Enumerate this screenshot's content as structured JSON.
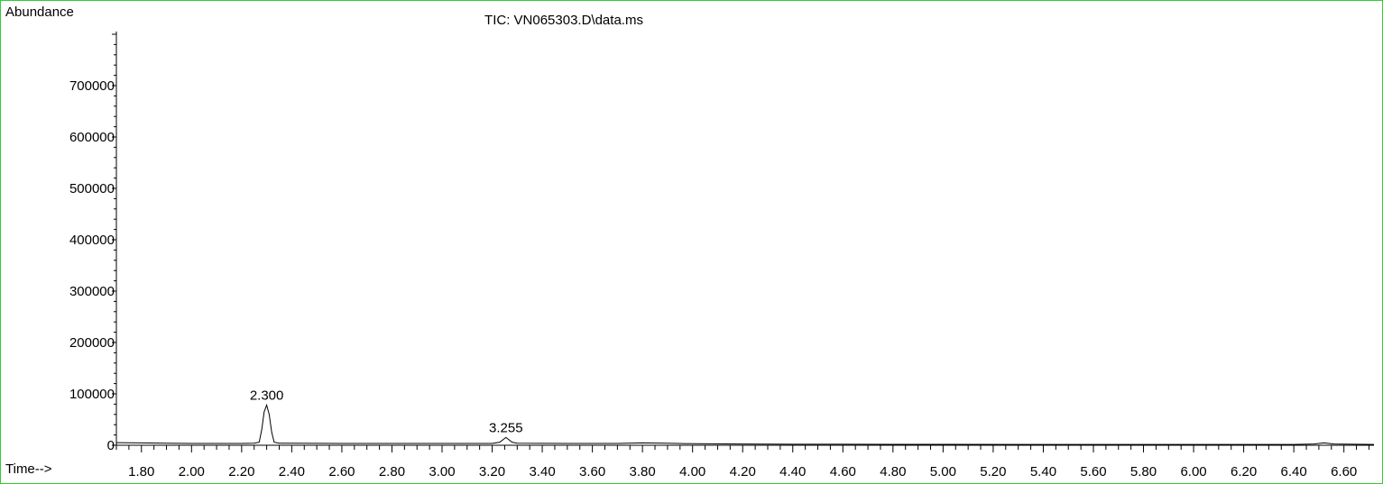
{
  "chart_data": {
    "type": "line",
    "title": "TIC: VN065303.D\\data.ms",
    "ylabel": "Abundance",
    "xlabel": "Time-->",
    "xlim": [
      1.7,
      6.72
    ],
    "ylim": [
      0,
      800000
    ],
    "x_ticks": [
      "1.80",
      "2.00",
      "2.20",
      "2.40",
      "2.60",
      "2.80",
      "3.00",
      "3.20",
      "3.40",
      "3.60",
      "3.80",
      "4.00",
      "4.20",
      "4.40",
      "4.60",
      "4.80",
      "5.00",
      "5.20",
      "5.40",
      "5.60",
      "5.80",
      "6.00",
      "6.20",
      "6.40",
      "6.60"
    ],
    "y_ticks": [
      "0",
      "100000",
      "200000",
      "300000",
      "400000",
      "500000",
      "600000",
      "700000"
    ],
    "series": [
      {
        "x": [
          1.7,
          1.8,
          1.9,
          2.0,
          2.1,
          2.2,
          2.25,
          2.27,
          2.28,
          2.29,
          2.3,
          2.31,
          2.32,
          2.33,
          2.35,
          2.4,
          2.6,
          2.8,
          3.0,
          3.2,
          3.23,
          3.255,
          3.28,
          3.3,
          3.5,
          3.7,
          3.8,
          3.9,
          4.0,
          4.2,
          4.4,
          4.6,
          4.8,
          5.0,
          5.5,
          6.0,
          6.4,
          6.48,
          6.52,
          6.56,
          6.72
        ],
        "y": [
          5000,
          4500,
          4000,
          3500,
          3500,
          3500,
          4000,
          6000,
          30000,
          65000,
          78000,
          60000,
          25000,
          6000,
          4000,
          4000,
          3500,
          3500,
          3500,
          3500,
          6000,
          15000,
          6000,
          4000,
          3500,
          3500,
          4500,
          4000,
          3000,
          2500,
          2000,
          2000,
          1800,
          1800,
          1500,
          1500,
          1500,
          2500,
          4500,
          2500,
          1500
        ]
      }
    ],
    "annotations": [
      {
        "x": 2.3,
        "y": 78000,
        "text": "2.300"
      },
      {
        "x": 3.255,
        "y": 15000,
        "text": "3.255"
      }
    ]
  }
}
